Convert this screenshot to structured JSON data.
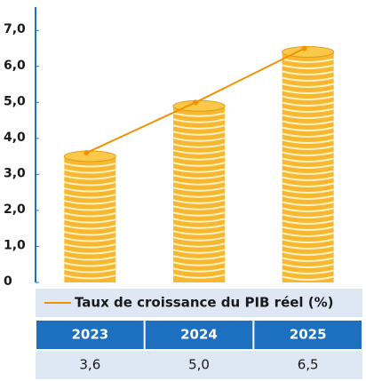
{
  "chart_data": {
    "type": "bar-line",
    "categories": [
      "2023",
      "2024",
      "2025"
    ],
    "series": [
      {
        "name": "Taux de croissance du PIB réel (%)",
        "color": "#f39200",
        "values": [
          3.6,
          5.0,
          6.5
        ],
        "value_labels": [
          "3,6",
          "5,0",
          "6,5"
        ]
      }
    ],
    "coin_color": "#f7b731",
    "ylim": [
      0,
      7.4
    ],
    "yticks": [
      0,
      {
        "value": 1,
        "label": "1,0"
      },
      {
        "value": 2,
        "label": "2,0"
      },
      {
        "value": 3,
        "label": "3,0"
      },
      {
        "value": 4,
        "label": "4,0"
      },
      {
        "value": 5,
        "label": "5,0"
      },
      {
        "value": 6,
        "label": "6,0"
      },
      {
        "value": 7,
        "label": "7,0"
      }
    ]
  }
}
